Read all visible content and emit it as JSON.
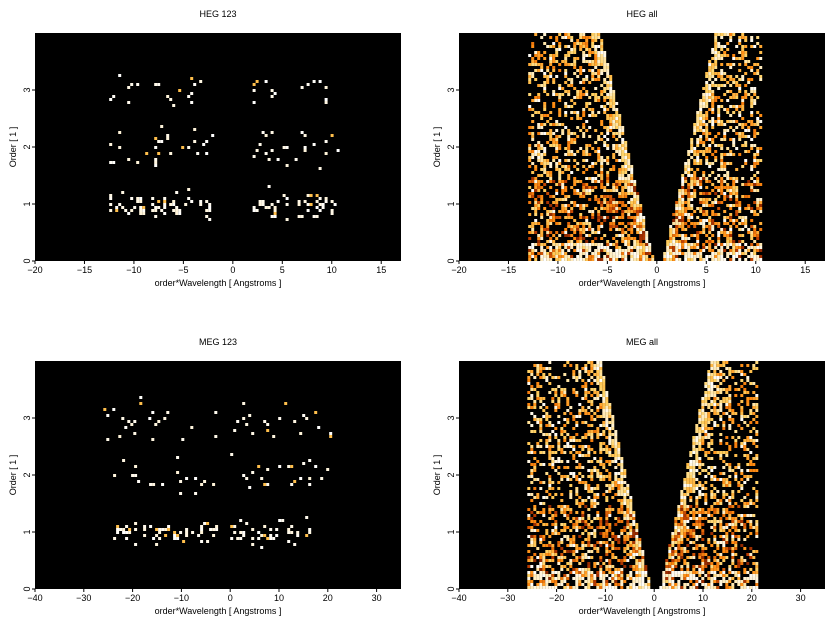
{
  "chart_data": [
    {
      "type": "heatmap",
      "title": "HEG 123",
      "xlabel": "order*Wavelength [ Angstroms ]",
      "ylabel": "Order [ 1 ]",
      "xlim": [
        -20,
        17
      ],
      "ylim": [
        0,
        4
      ],
      "xticks": [
        -20,
        -15,
        -10,
        -5,
        0,
        5,
        10,
        15
      ],
      "yticks": [
        0,
        1,
        2,
        3
      ],
      "background": "#000000",
      "colormap": [
        "#000000",
        "#5a1000",
        "#b83a00",
        "#ff8a10",
        "#ffd060",
        "#ffffff"
      ],
      "pattern": "sparse-orders",
      "order_bands": [
        {
          "order": 1,
          "x_ranges": [
            [
              -12.5,
              -2
            ],
            [
              2,
              10.5
            ]
          ],
          "density": 0.3,
          "intensity": 0.95
        },
        {
          "order": 2,
          "x_ranges": [
            [
              -12.5,
              -2
            ],
            [
              2,
              10.5
            ]
          ],
          "density": 0.07,
          "intensity": 0.95
        },
        {
          "order": 3,
          "x_ranges": [
            [
              -12.5,
              -2
            ],
            [
              2,
              10.5
            ]
          ],
          "density": 0.06,
          "intensity": 0.95
        }
      ]
    },
    {
      "type": "heatmap",
      "title": "HEG all",
      "xlabel": "order*Wavelength [ Angstroms ]",
      "ylabel": "Order [ 1 ]",
      "xlim": [
        -20,
        17
      ],
      "ylim": [
        0,
        4
      ],
      "xticks": [
        -20,
        -15,
        -10,
        -5,
        0,
        5,
        10,
        15
      ],
      "yticks": [
        0,
        1,
        2,
        3
      ],
      "background": "#000000",
      "colormap": [
        "#000000",
        "#5a1000",
        "#b83a00",
        "#ff8a10",
        "#ffd060",
        "#ffffff"
      ],
      "pattern": "dense-v",
      "data_extent_x": [
        -13,
        10.5
      ],
      "v_slope_per_order": 1.35,
      "v_gap_half_width": 0.4
    },
    {
      "type": "heatmap",
      "title": "MEG 123",
      "xlabel": "order*Wavelength [ Angstroms ]",
      "ylabel": "Order [ 1 ]",
      "xlim": [
        -40,
        35
      ],
      "ylim": [
        0,
        4
      ],
      "xticks": [
        -40,
        -30,
        -20,
        -10,
        0,
        10,
        20,
        30
      ],
      "yticks": [
        0,
        1,
        2,
        3
      ],
      "background": "#000000",
      "colormap": [
        "#000000",
        "#5a1000",
        "#b83a00",
        "#ff8a10",
        "#ffd060",
        "#ffffff"
      ],
      "pattern": "sparse-orders",
      "order_bands": [
        {
          "order": 1,
          "x_ranges": [
            [
              -24,
              -3
            ],
            [
              0,
              16
            ]
          ],
          "density": 0.3,
          "intensity": 0.95
        },
        {
          "order": 2,
          "x_ranges": [
            [
              -24,
              -3
            ],
            [
              0,
              20
            ]
          ],
          "density": 0.06,
          "intensity": 0.95
        },
        {
          "order": 3,
          "x_ranges": [
            [
              -26,
              -3
            ],
            [
              0,
              21
            ]
          ],
          "density": 0.07,
          "intensity": 0.95
        }
      ]
    },
    {
      "type": "heatmap",
      "title": "MEG all",
      "xlabel": "order*Wavelength [ Angstroms ]",
      "ylabel": "Order [ 1 ]",
      "xlim": [
        -40,
        35
      ],
      "ylim": [
        0,
        4
      ],
      "xticks": [
        -40,
        -30,
        -20,
        -10,
        0,
        10,
        20,
        30
      ],
      "yticks": [
        0,
        1,
        2,
        3
      ],
      "background": "#000000",
      "colormap": [
        "#000000",
        "#5a1000",
        "#b83a00",
        "#ff8a10",
        "#ffd060",
        "#ffffff"
      ],
      "pattern": "dense-v",
      "data_extent_x": [
        -26,
        21
      ],
      "v_slope_per_order": 2.6,
      "v_gap_half_width": 0.8
    }
  ]
}
